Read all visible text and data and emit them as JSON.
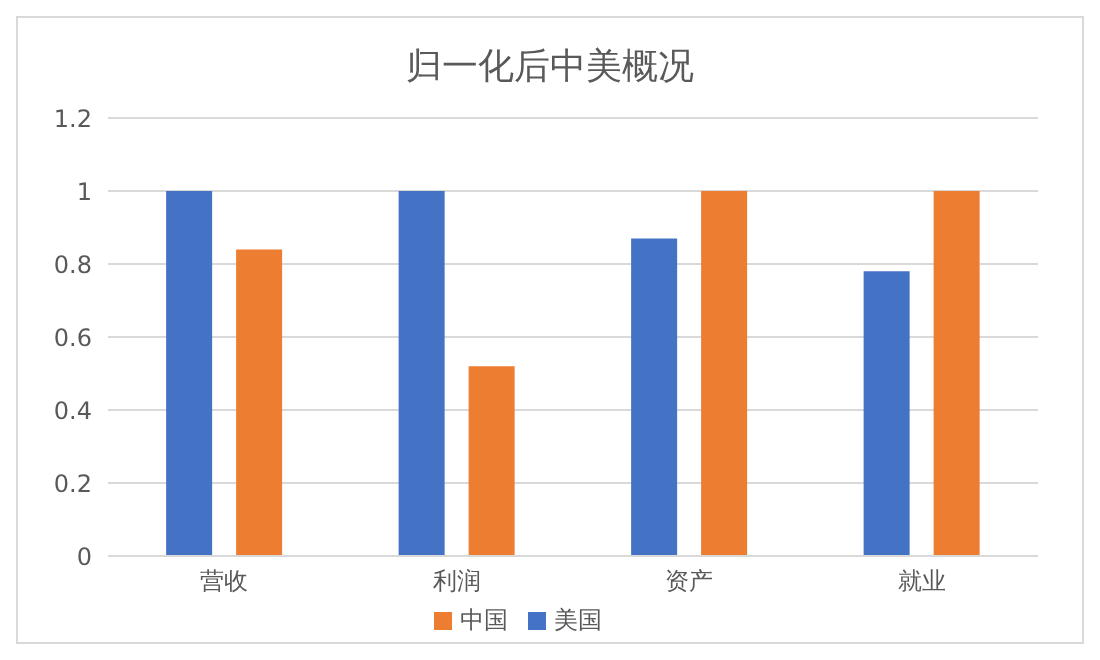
{
  "chart_data": {
    "type": "bar",
    "title": "归一化后中美概况",
    "categories": [
      "营收",
      "利润",
      "资产",
      "就业"
    ],
    "series": [
      {
        "name": "美国",
        "color": "#4472c4",
        "values": [
          1,
          1,
          0.87,
          0.78
        ]
      },
      {
        "name": "中国",
        "color": "#ed7d31",
        "values": [
          0.84,
          0.52,
          1,
          1
        ]
      }
    ],
    "ylim": [
      0,
      1.2
    ],
    "yticks": [
      0,
      0.2,
      0.4,
      0.6,
      0.8,
      1,
      1.2
    ],
    "grid": "y",
    "legend": "bottom"
  }
}
